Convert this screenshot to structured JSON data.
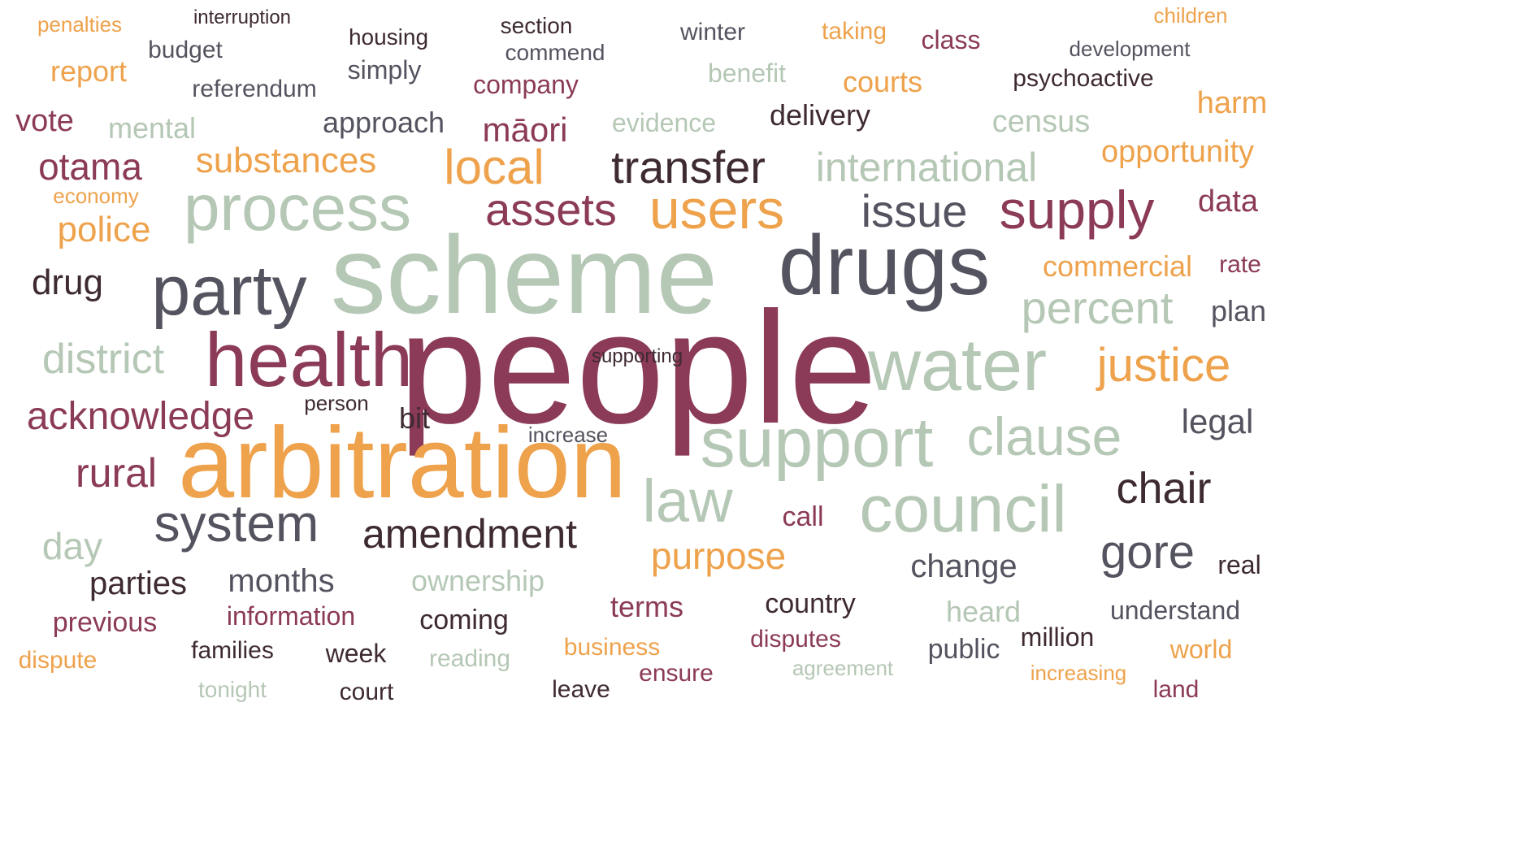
{
  "palette": {
    "orange": "#eea24c",
    "maroon": "#8b3a57",
    "dark": "#3e2a32",
    "grey": "#545460",
    "sage": "#b5c7b5",
    "background": "#ffffff"
  },
  "words": [
    "people",
    "scheme",
    "arbitration",
    "drugs",
    "health",
    "water",
    "support",
    "party",
    "process",
    "council",
    "supply",
    "users",
    "law",
    "system",
    "clause",
    "assets",
    "justice",
    "transfer",
    "local",
    "issue",
    "amendment",
    "chair",
    "gore",
    "percent",
    "district",
    "international",
    "acknowledge",
    "rural",
    "substances",
    "otama",
    "police",
    "purpose",
    "drug",
    "day",
    "legal",
    "change",
    "opportunity",
    "parties",
    "months",
    "commercial",
    "census",
    "harm",
    "data",
    "plan",
    "māori",
    "approach",
    "mental",
    "vote",
    "report",
    "delivery",
    "courts",
    "ownership",
    "terms",
    "country",
    "heard",
    "understand",
    "psychoactive",
    "company",
    "referendum",
    "simply",
    "housing",
    "section",
    "commend",
    "winter",
    "taking",
    "class",
    "development",
    "children",
    "benefit",
    "evidence",
    "budget",
    "interruption",
    "penalties",
    "economy",
    "real",
    "bit",
    "person",
    "increase",
    "call",
    "previous",
    "information",
    "coming",
    "million",
    "public",
    "world",
    "dispute",
    "families",
    "week",
    "reading",
    "business",
    "disputes",
    "ensure",
    "agreement",
    "increasing",
    "tonight",
    "court",
    "leave",
    "land",
    "rate",
    "supporting"
  ]
}
